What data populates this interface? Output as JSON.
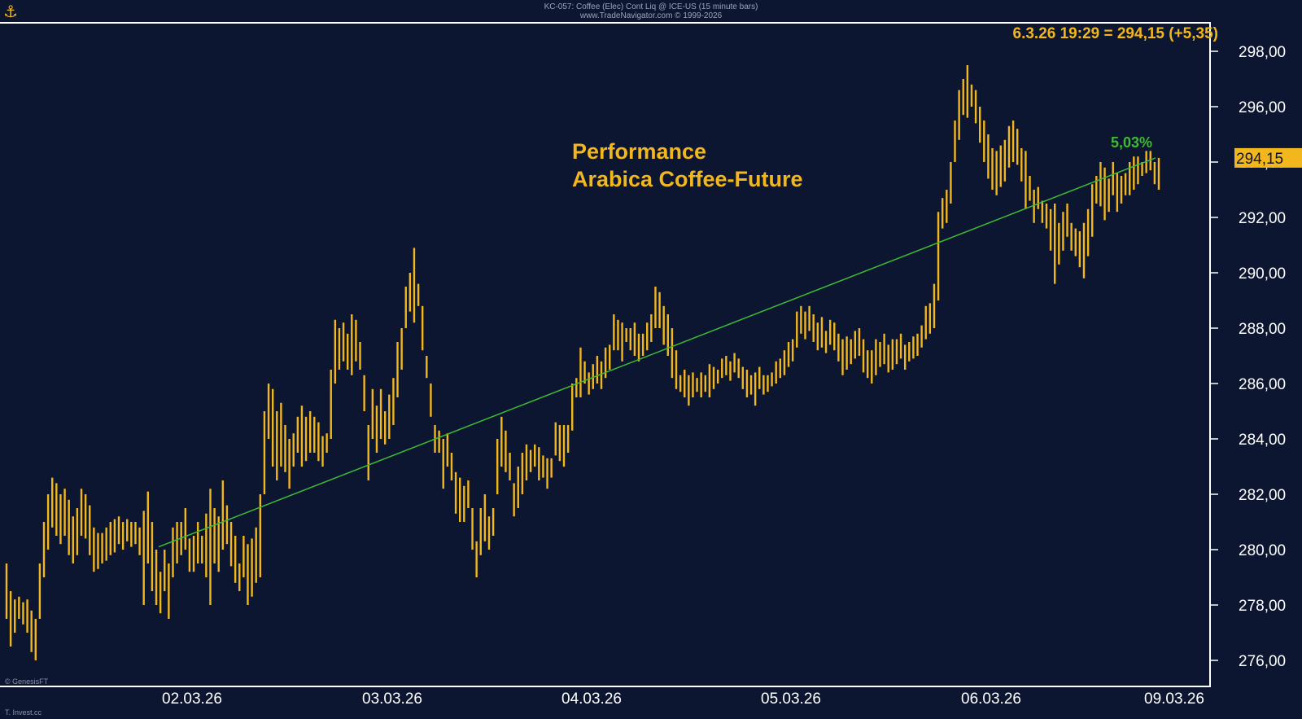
{
  "header": {
    "line1": "KC-057: Coffee (Elec) Cont Liq @ ICE-US (15 minute bars)",
    "line2": "www.TradeNavigator.com © 1999-2026"
  },
  "icons": {
    "logo": "ship-anchor-icon"
  },
  "footer": {
    "credit": "© GenesisFT",
    "watermark": "T. Invest.cc"
  },
  "colors": {
    "background": "#0d1630",
    "bars": "#f2b71d",
    "trendline": "#3dbb35",
    "axis": "#ffffff"
  },
  "chart_data": {
    "type": "ohlc",
    "title": "Performance",
    "subtitle": "Arabica Coffee-Future",
    "quote": "6.3.26 19:29 = 294,15 (+5,35)",
    "last_price_label": "294,15",
    "trend_label": "5,03%",
    "trendline": {
      "from": {
        "x": "02.03.26 09:00",
        "y": 280.1
      },
      "to": {
        "x": "06.03.26 19:29",
        "y": 294.15
      }
    },
    "ylim": [
      275,
      299
    ],
    "yticks": [
      "276,00",
      "278,00",
      "280,00",
      "282,00",
      "284,00",
      "286,00",
      "288,00",
      "290,00",
      "292,00",
      "294,00",
      "296,00",
      "298,00"
    ],
    "xticks": [
      "02.03.26",
      "03.03.26",
      "04.03.26",
      "05.03.26",
      "06.03.26",
      "09.03.26"
    ],
    "grid": false,
    "bars_hl": [
      [
        277.5,
        279.5
      ],
      [
        276.5,
        278.5
      ],
      [
        277,
        278.2
      ],
      [
        277.5,
        278.3
      ],
      [
        277.3,
        278.1
      ],
      [
        277,
        278.2
      ],
      [
        276.3,
        277.8
      ],
      [
        276,
        277.5
      ],
      [
        277.5,
        279.5
      ],
      [
        279,
        281
      ],
      [
        280,
        282
      ],
      [
        280.8,
        282.6
      ],
      [
        280.5,
        282.4
      ],
      [
        280.2,
        282
      ],
      [
        280.5,
        282.2
      ],
      [
        279.8,
        281.8
      ],
      [
        279.5,
        281.2
      ],
      [
        279.8,
        281.5
      ],
      [
        280.5,
        282.2
      ],
      [
        280.4,
        282
      ],
      [
        279.8,
        281.6
      ],
      [
        279.2,
        280.8
      ],
      [
        279.3,
        280.6
      ],
      [
        279.5,
        280.6
      ],
      [
        279.6,
        280.8
      ],
      [
        279.8,
        281
      ],
      [
        279.9,
        281.1
      ],
      [
        280.2,
        281.2
      ],
      [
        280,
        281
      ],
      [
        280.3,
        281.1
      ],
      [
        280.1,
        281
      ],
      [
        280.2,
        281
      ],
      [
        279.8,
        280.8
      ],
      [
        278,
        281.4
      ],
      [
        279.5,
        282.1
      ],
      [
        278.5,
        281
      ],
      [
        278,
        280
      ],
      [
        277.7,
        279.2
      ],
      [
        278.5,
        280
      ],
      [
        277.5,
        279.5
      ],
      [
        279,
        280.8
      ],
      [
        279.5,
        281
      ],
      [
        279.8,
        281
      ],
      [
        280,
        281.5
      ],
      [
        279.2,
        280.4
      ],
      [
        279.2,
        280.5
      ],
      [
        279.5,
        281
      ],
      [
        279.5,
        280.5
      ],
      [
        279,
        281.3
      ],
      [
        278,
        282.2
      ],
      [
        279.5,
        281.5
      ],
      [
        279.2,
        281.2
      ],
      [
        280,
        282.5
      ],
      [
        280.2,
        281.6
      ],
      [
        279.4,
        281
      ],
      [
        278.8,
        280.5
      ],
      [
        278.5,
        279.5
      ],
      [
        279,
        280.5
      ],
      [
        278,
        280.2
      ],
      [
        278.3,
        280.4
      ],
      [
        278.8,
        280.8
      ],
      [
        279,
        282
      ],
      [
        282,
        285
      ],
      [
        284,
        286
      ],
      [
        283,
        285.8
      ],
      [
        282.5,
        285
      ],
      [
        283,
        285.3
      ],
      [
        282.8,
        284.5
      ],
      [
        282.2,
        284
      ],
      [
        283,
        284.2
      ],
      [
        283.5,
        284.8
      ],
      [
        283,
        285.2
      ],
      [
        283.2,
        284.8
      ],
      [
        283.5,
        285
      ],
      [
        283.5,
        284.8
      ],
      [
        283.2,
        284.6
      ],
      [
        283,
        284.1
      ],
      [
        283.5,
        284.2
      ],
      [
        284,
        286.5
      ],
      [
        286,
        288.3
      ],
      [
        286.5,
        288
      ],
      [
        286.8,
        288.2
      ],
      [
        286.5,
        287.8
      ],
      [
        286.3,
        288.5
      ],
      [
        286.8,
        288.3
      ],
      [
        286.5,
        287.5
      ],
      [
        285,
        286.3
      ],
      [
        282.5,
        284.5
      ],
      [
        284,
        285.8
      ],
      [
        283.5,
        285.2
      ],
      [
        284,
        285.8
      ],
      [
        283.8,
        285
      ],
      [
        284,
        285.6
      ],
      [
        284.5,
        286.2
      ],
      [
        285.5,
        287.5
      ],
      [
        286.5,
        288
      ],
      [
        288,
        289.5
      ],
      [
        288.6,
        290
      ],
      [
        288.2,
        290.9
      ],
      [
        288.8,
        289.6
      ],
      [
        287.2,
        288.8
      ],
      [
        286.2,
        287
      ],
      [
        284.8,
        286
      ],
      [
        283.5,
        284.5
      ],
      [
        283.5,
        284.3
      ],
      [
        282.2,
        284
      ],
      [
        283,
        284.2
      ],
      [
        282.5,
        283.5
      ],
      [
        281.3,
        282.8
      ],
      [
        281,
        282.6
      ],
      [
        281,
        282.3
      ],
      [
        281.5,
        282.5
      ],
      [
        280,
        281.5
      ],
      [
        279,
        280.3
      ],
      [
        279.8,
        281.5
      ],
      [
        280.3,
        282
      ],
      [
        280,
        281.2
      ],
      [
        280.5,
        281.5
      ],
      [
        282,
        284
      ],
      [
        283,
        284.8
      ],
      [
        282.8,
        284.3
      ],
      [
        282.5,
        283.5
      ],
      [
        281.2,
        282.4
      ],
      [
        281.5,
        283
      ],
      [
        282,
        283.5
      ],
      [
        282.5,
        283.8
      ],
      [
        282.8,
        283.6
      ],
      [
        283,
        283.8
      ],
      [
        282.5,
        283.7
      ],
      [
        282.6,
        283.4
      ],
      [
        282.2,
        283.3
      ],
      [
        282.6,
        283.3
      ],
      [
        283.4,
        284.6
      ],
      [
        283.2,
        284.5
      ],
      [
        283,
        284.5
      ],
      [
        283.5,
        284.5
      ],
      [
        284.3,
        286
      ],
      [
        285.5,
        286.2
      ],
      [
        285.5,
        287.3
      ],
      [
        286,
        286.8
      ],
      [
        285.6,
        286.4
      ],
      [
        285.8,
        286.7
      ],
      [
        286,
        287
      ],
      [
        285.8,
        286.8
      ],
      [
        286.2,
        287.3
      ],
      [
        286.5,
        287.4
      ],
      [
        287.2,
        288.5
      ],
      [
        287.2,
        288.3
      ],
      [
        286.8,
        288.2
      ],
      [
        287.5,
        288
      ],
      [
        287.2,
        288
      ],
      [
        287,
        288.2
      ],
      [
        286.8,
        287.8
      ],
      [
        287,
        287.8
      ],
      [
        287.2,
        288.2
      ],
      [
        287.5,
        288.5
      ],
      [
        288,
        289.5
      ],
      [
        288,
        289.3
      ],
      [
        287.4,
        288.8
      ],
      [
        287,
        288.5
      ],
      [
        286.2,
        288
      ],
      [
        285.8,
        287.2
      ],
      [
        285.7,
        286.3
      ],
      [
        285.5,
        286.5
      ],
      [
        285.2,
        286.3
      ],
      [
        285.5,
        286.4
      ],
      [
        285.7,
        286.2
      ],
      [
        285.5,
        286.4
      ],
      [
        285.7,
        286.3
      ],
      [
        285.5,
        286.7
      ],
      [
        285.8,
        286.6
      ],
      [
        286,
        286.5
      ],
      [
        286.2,
        286.9
      ],
      [
        286.3,
        287
      ],
      [
        286.1,
        286.8
      ],
      [
        286.4,
        287.1
      ],
      [
        286.2,
        286.9
      ],
      [
        285.8,
        286.6
      ],
      [
        285.5,
        286.5
      ],
      [
        285.6,
        286.3
      ],
      [
        285.2,
        286.4
      ],
      [
        285.8,
        286.6
      ],
      [
        285.6,
        286.3
      ],
      [
        285.7,
        286.3
      ],
      [
        285.9,
        286.4
      ],
      [
        286,
        286.8
      ],
      [
        286.2,
        286.9
      ],
      [
        286.3,
        287.2
      ],
      [
        286.6,
        287.5
      ],
      [
        286.8,
        287.6
      ],
      [
        287.3,
        288.6
      ],
      [
        287.8,
        288.8
      ],
      [
        287.6,
        288.6
      ],
      [
        287.9,
        288.8
      ],
      [
        287.5,
        288.5
      ],
      [
        287.2,
        288.2
      ],
      [
        287.3,
        288.4
      ],
      [
        287.1,
        287.9
      ],
      [
        287.4,
        288.3
      ],
      [
        287.2,
        288.2
      ],
      [
        286.8,
        287.8
      ],
      [
        286.3,
        287.6
      ],
      [
        286.5,
        287.7
      ],
      [
        286.7,
        287.6
      ],
      [
        286.9,
        287.9
      ],
      [
        287,
        288
      ],
      [
        286.4,
        287.6
      ],
      [
        286.2,
        287.2
      ],
      [
        286,
        287.2
      ],
      [
        286.3,
        287.6
      ],
      [
        286.6,
        287.5
      ],
      [
        286.7,
        287.8
      ],
      [
        286.4,
        287.4
      ],
      [
        286.5,
        287.6
      ],
      [
        286.7,
        287.6
      ],
      [
        286.9,
        287.8
      ],
      [
        286.5,
        287.4
      ],
      [
        286.8,
        287.5
      ],
      [
        286.9,
        287.7
      ],
      [
        287,
        287.8
      ],
      [
        287.3,
        288.1
      ],
      [
        287.6,
        288.8
      ],
      [
        287.8,
        288.9
      ],
      [
        288,
        289.6
      ],
      [
        289,
        292.2
      ],
      [
        291.6,
        292.7
      ],
      [
        291.8,
        293
      ],
      [
        292.5,
        294
      ],
      [
        294,
        295.5
      ],
      [
        294.8,
        296.6
      ],
      [
        295.7,
        297
      ],
      [
        295.6,
        297.5
      ],
      [
        296,
        296.8
      ],
      [
        295.4,
        296.6
      ],
      [
        294.7,
        296
      ],
      [
        294,
        295.5
      ],
      [
        293.4,
        295
      ],
      [
        293,
        294.5
      ],
      [
        292.8,
        294.4
      ],
      [
        293.1,
        294.6
      ],
      [
        293.3,
        294.8
      ],
      [
        293.8,
        295.3
      ],
      [
        294,
        295.5
      ],
      [
        293.9,
        295.2
      ],
      [
        293.3,
        294.5
      ],
      [
        292.3,
        294.4
      ],
      [
        292.6,
        293.5
      ],
      [
        291.8,
        293
      ],
      [
        292.3,
        293.1
      ],
      [
        291.8,
        292.6
      ],
      [
        291.6,
        292.5
      ],
      [
        290.8,
        292.3
      ],
      [
        289.6,
        292.5
      ],
      [
        290.3,
        291.8
      ],
      [
        290.8,
        292.2
      ],
      [
        291.3,
        292.5
      ],
      [
        290.8,
        291.8
      ],
      [
        290.6,
        291.6
      ],
      [
        290.2,
        291.5
      ],
      [
        289.8,
        291.8
      ],
      [
        290.6,
        292.3
      ],
      [
        291.3,
        293.2
      ],
      [
        292.5,
        293.5
      ],
      [
        292.4,
        294
      ],
      [
        291.9,
        293.8
      ],
      [
        292.2,
        293.4
      ],
      [
        292.8,
        294
      ],
      [
        292.2,
        293.6
      ],
      [
        292.5,
        293.5
      ],
      [
        292.8,
        293.6
      ],
      [
        292.8,
        294
      ],
      [
        293,
        294.2
      ],
      [
        293.2,
        294.2
      ],
      [
        293.5,
        294
      ],
      [
        293.6,
        294.4
      ],
      [
        293.7,
        294.4
      ],
      [
        293.2,
        294
      ],
      [
        293,
        294.15
      ]
    ]
  }
}
